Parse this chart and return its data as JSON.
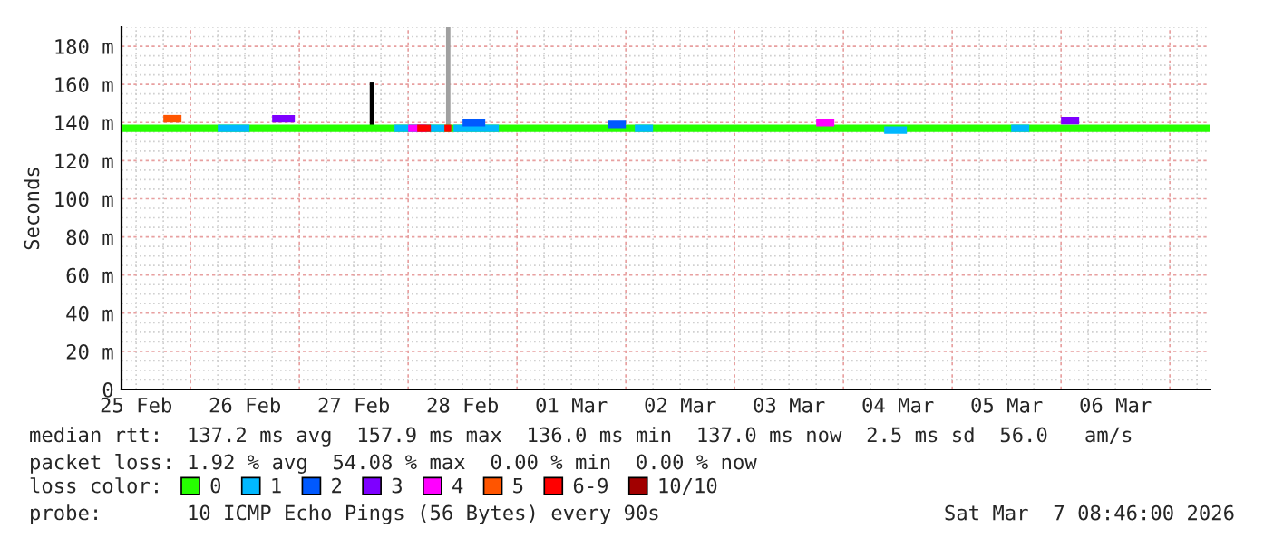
{
  "chart_data": {
    "type": "step",
    "ylabel": "Seconds",
    "xlim": [
      "2026-02-25T08:46",
      "2026-03-07T08:46"
    ],
    "xticks": [
      {
        "value": "2026-02-25T12:00",
        "label": "25 Feb"
      },
      {
        "value": "2026-02-26T12:00",
        "label": "26 Feb"
      },
      {
        "value": "2026-02-27T12:00",
        "label": "27 Feb"
      },
      {
        "value": "2026-02-28T12:00",
        "label": "28 Feb"
      },
      {
        "value": "2026-03-01T12:00",
        "label": "01 Mar"
      },
      {
        "value": "2026-03-02T12:00",
        "label": "02 Mar"
      },
      {
        "value": "2026-03-03T12:00",
        "label": "03 Mar"
      },
      {
        "value": "2026-03-04T12:00",
        "label": "04 Mar"
      },
      {
        "value": "2026-03-05T12:00",
        "label": "05 Mar"
      },
      {
        "value": "2026-03-06T12:00",
        "label": "06 Mar"
      }
    ],
    "ylim": [
      0,
      190
    ],
    "yticks": [
      0,
      {
        "value": 20,
        "label": "20 m"
      },
      {
        "value": 40,
        "label": "40 m"
      },
      {
        "value": 60,
        "label": "60 m"
      },
      {
        "value": 80,
        "label": "80 m"
      },
      {
        "value": 100,
        "label": "100 m"
      },
      {
        "value": 120,
        "label": "120 m"
      },
      {
        "value": 140,
        "label": "140 m"
      },
      {
        "value": 160,
        "label": "160 m"
      },
      {
        "value": 180,
        "label": "180 m"
      }
    ],
    "grid": true,
    "legend": "bottom",
    "legend_title": "loss color:",
    "series": [
      {
        "name": "0",
        "color": "#26ff00",
        "x": [
          "2026-02-25T08:46",
          "2026-03-07T08:46"
        ],
        "values": [
          137,
          137
        ]
      },
      {
        "name": "1",
        "color": "#00b8ff",
        "x": [
          "2026-02-26T06:00",
          "2026-02-26T12:00",
          "2026-02-26T13:00",
          "2026-02-27T21:00",
          "2026-02-28T07:00",
          "2026-02-28T08:00",
          "2026-02-28T10:00",
          "2026-02-28T19:00",
          "2026-02-28T20:00",
          "2026-03-02T02:00",
          "2026-03-02T05:00",
          "2026-03-02T06:00",
          "2026-03-04T09:00",
          "2026-03-04T13:00",
          "2026-03-04T14:00",
          "2026-03-05T13:00",
          "2026-03-05T17:00"
        ],
        "values": [
          137,
          137,
          null,
          137,
          137,
          null,
          137,
          137,
          null,
          137,
          137,
          null,
          136,
          136,
          null,
          137,
          137
        ]
      },
      {
        "name": "2",
        "color": "#0059ff",
        "x": [
          "2026-02-28T12:00",
          "2026-02-28T16:00",
          "2026-02-28T17:00",
          "2026-03-01T20:00",
          "2026-03-02T00:00"
        ],
        "values": [
          140,
          140,
          null,
          139,
          139
        ]
      },
      {
        "name": "3",
        "color": "#7e00ff",
        "x": [
          "2026-02-26T18:00",
          "2026-02-26T22:00",
          "2026-02-26T23:00",
          "2026-03-06T00:00",
          "2026-03-06T04:00"
        ],
        "values": [
          142,
          142,
          null,
          141,
          141
        ]
      },
      {
        "name": "4",
        "color": "#ff00ff",
        "x": [
          "2026-02-28T00:00",
          "2026-02-28T03:00",
          "2026-02-28T04:00",
          "2026-03-03T18:00",
          "2026-03-03T22:00"
        ],
        "values": [
          137,
          137,
          null,
          140,
          140
        ]
      },
      {
        "name": "5",
        "color": "#ff5500",
        "x": [
          "2026-02-25T18:00",
          "2026-02-25T22:00"
        ],
        "values": [
          142,
          142
        ]
      },
      {
        "name": "6-9",
        "color": "#ff0000",
        "x": [
          "2026-02-28T02:00",
          "2026-02-28T04:00",
          "2026-02-28T05:00",
          "2026-02-28T08:00",
          "2026-02-28T09:30"
        ],
        "values": [
          137,
          137,
          null,
          137,
          137
        ]
      },
      {
        "name": "10/10",
        "color": "#a10000"
      },
      {
        "type": "bar",
        "color": "#a0a0a0",
        "x": [
          "2026-02-28T08:50"
        ],
        "base": [
          137
        ],
        "values": [
          53
        ]
      },
      {
        "type": "bar",
        "color": "#000000",
        "x": [
          "2026-02-27T16:00"
        ],
        "base": [
          137
        ],
        "values": [
          24
        ]
      }
    ],
    "annotations": [
      "median rtt:  137.2 ms avg  157.9 ms max  136.0 ms min  137.0 ms now  2.5 ms sd  56.0   am/s",
      "packet loss: 1.92 % avg  54.08 % max  0.00 % min  0.00 % now",
      "probe:       10 ICMP Echo Pings (56 Bytes) every 90s",
      "Sat Mar  7 08:46:00 2026"
    ]
  }
}
